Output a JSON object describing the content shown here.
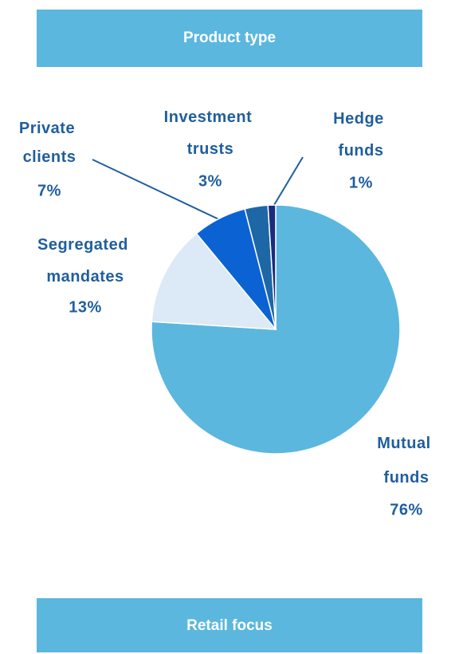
{
  "header": {
    "title": "Product type"
  },
  "chart_data": {
    "type": "pie",
    "categories": [
      "Mutual funds",
      "Segregated mandates",
      "Private clients",
      "Investment trusts",
      "Hedge funds"
    ],
    "values": [
      76,
      13,
      7,
      3,
      1
    ],
    "value_labels": [
      "76%",
      "13%",
      "7%",
      "3%",
      "1%"
    ],
    "colors": [
      "#5bb7de",
      "#dce9f6",
      "#0b63d3",
      "#1d67a6",
      "#1a2d7c"
    ]
  },
  "footer": {
    "title": "Retail focus"
  }
}
